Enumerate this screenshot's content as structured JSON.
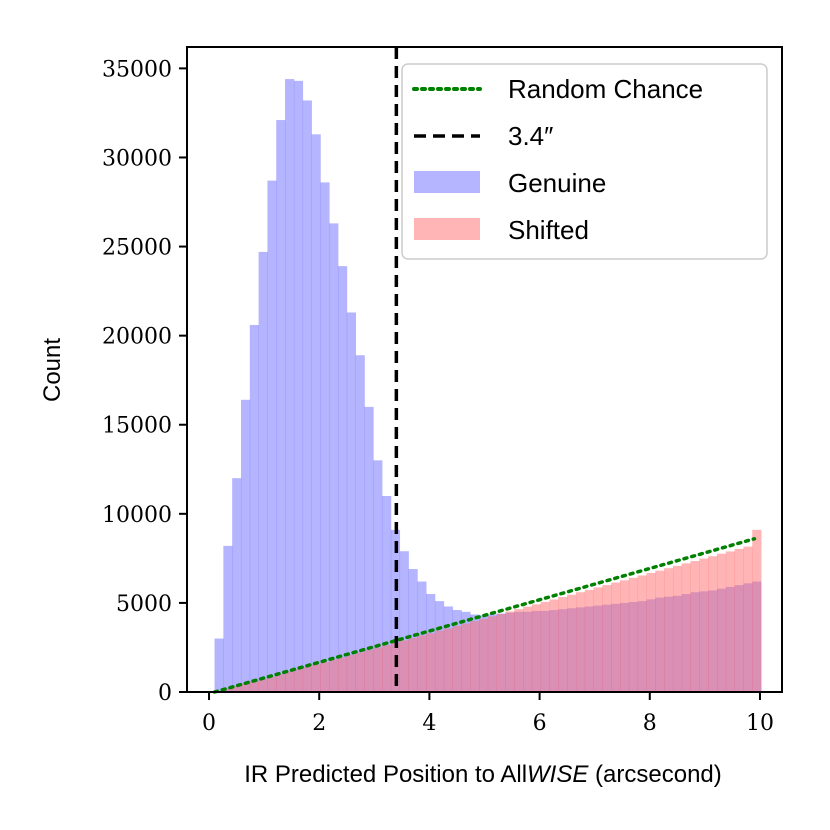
{
  "chart_data": {
    "type": "histogram",
    "xlabel_prefix": "IR Predicted Position to All",
    "xlabel_italic": "WISE",
    "xlabel_suffix": " (arcsecond)",
    "ylabel": "Count",
    "xlim": [
      -0.4,
      10.4
    ],
    "ylim": [
      0,
      36200
    ],
    "x_ticks": [
      0,
      2,
      4,
      6,
      8,
      10
    ],
    "y_ticks": [
      0,
      5000,
      10000,
      15000,
      20000,
      25000,
      30000,
      35000
    ],
    "bin_edges_start": 0.1,
    "bin_width": 0.16,
    "vline": {
      "x": 3.4,
      "label": "3.4″",
      "color": "#000000"
    },
    "random_chance": {
      "label": "Random Chance",
      "x": [
        0.1,
        9.9
      ],
      "y": [
        0,
        8600
      ],
      "color": "#008000"
    },
    "legend_position": "upper right",
    "series": [
      {
        "name": "Genuine",
        "color": "#7777ff",
        "values": [
          3000,
          8200,
          12000,
          16400,
          20600,
          24700,
          28700,
          32100,
          34400,
          34300,
          33200,
          31300,
          28600,
          26300,
          23900,
          21300,
          18900,
          16000,
          13000,
          11000,
          9100,
          7900,
          6900,
          6200,
          5500,
          5100,
          4800,
          4600,
          4500,
          4350,
          4300,
          4350,
          4400,
          4450,
          4500,
          4500,
          4550,
          4550,
          4600,
          4650,
          4700,
          4750,
          4800,
          4850,
          4900,
          4950,
          5000,
          5050,
          5100,
          5200,
          5300,
          5350,
          5400,
          5500,
          5600,
          5650,
          5700,
          5800,
          5900,
          6000,
          6100,
          6200
        ]
      },
      {
        "name": "Shifted",
        "color": "#ff6b6b",
        "values": [
          60,
          190,
          330,
          470,
          600,
          740,
          870,
          1010,
          1140,
          1280,
          1410,
          1550,
          1680,
          1820,
          1950,
          2090,
          2220,
          2360,
          2490,
          2630,
          2760,
          2900,
          3030,
          3170,
          3300,
          3440,
          3570,
          3710,
          3840,
          3980,
          4110,
          4250,
          4380,
          4520,
          4650,
          4790,
          4920,
          5060,
          5190,
          5330,
          5460,
          5600,
          5730,
          5870,
          6000,
          6140,
          6270,
          6410,
          6540,
          6680,
          6810,
          6950,
          7080,
          7220,
          7350,
          7490,
          7620,
          7760,
          7890,
          8030,
          8160,
          9100
        ]
      }
    ]
  }
}
